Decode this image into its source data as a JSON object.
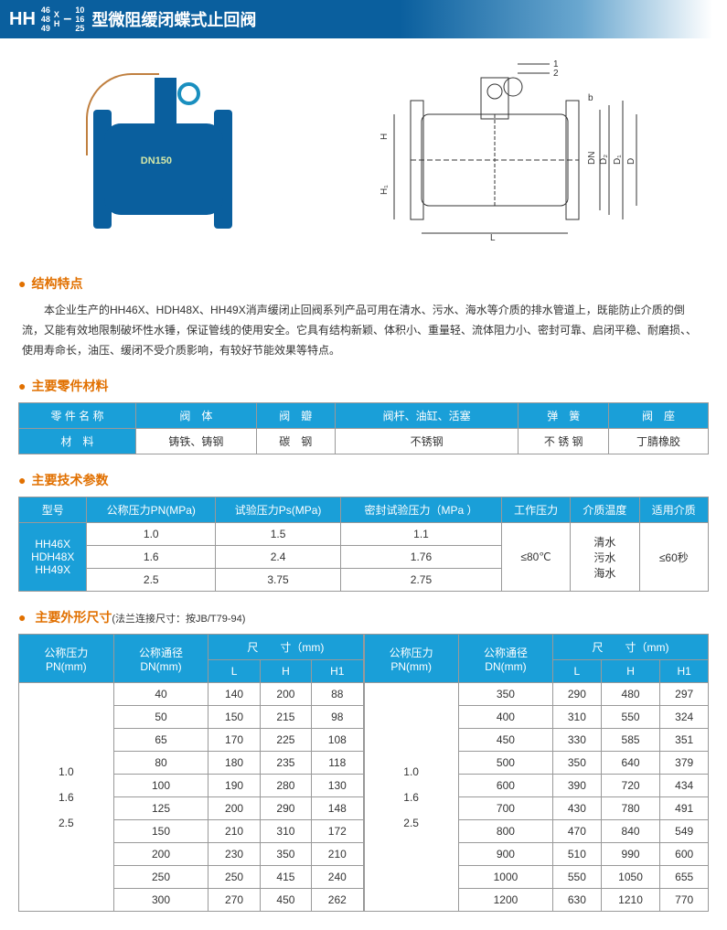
{
  "title": {
    "prefix": "HH",
    "stack1": [
      "46",
      "48",
      "49"
    ],
    "stack2": [
      "X",
      "",
      "H"
    ],
    "dash": "–",
    "stack3": [
      "10",
      "16",
      "25"
    ],
    "rest": "型微阻缓闭蝶式止回阀"
  },
  "photo": {
    "label": "DN150"
  },
  "sections": {
    "structure": {
      "title": "结构特点"
    },
    "materials": {
      "title": "主要零件材料"
    },
    "params": {
      "title": "主要技术参数"
    },
    "dims": {
      "title": "主要外形尺寸",
      "note": "(法兰连接尺寸：按JB/T79-94)"
    }
  },
  "desc": "　　本企业生产的HH46X、HDH48X、HH49X消声缓闭止回阀系列产品可用在清水、污水、海水等介质的排水管道上，既能防止介质的倒流，又能有效地限制破坏性水锤，保证管线的使用安全。它具有结构新颖、体积小、重量轻、流体阻力小、密封可靠、启闭平稳、耐磨损、、使用寿命长，油压、缓闭不受介质影响，有较好节能效果等特点。",
  "mat_table": {
    "headers": [
      "零 件 名 称",
      "阀　体",
      "阀　瓣",
      "阀杆、油缸、活塞",
      "弹　簧",
      "阀　座"
    ],
    "row_label": "材　料",
    "row": [
      "铸铁、铸钢",
      "碳　钢",
      "不锈钢",
      "不 锈 钢",
      "丁腈橡胶"
    ]
  },
  "param_table": {
    "headers": [
      "型号",
      "公称压力PN(MPa)",
      "试验压力Ps(MPa)",
      "密封试验压力（MPa ）",
      "工作压力",
      "介质温度",
      "适用介质"
    ],
    "model": "HH46X\nHDH48X\nHH49X",
    "rows": [
      [
        "1.0",
        "1.5",
        "1.1"
      ],
      [
        "1.6",
        "2.4",
        "1.76"
      ],
      [
        "2.5",
        "3.75",
        "2.75"
      ]
    ],
    "work_pressure": "≤80℃",
    "medium": "清水\n污水\n海水",
    "apply": "≤60秒"
  },
  "dim_table": {
    "headers_top": [
      "公称压力\nPN(mm)",
      "公称通径\nDN(mm)",
      "尺　　寸（mm)"
    ],
    "headers_sub": [
      "L",
      "H",
      "H1"
    ],
    "left": {
      "pn": "1.0\n\n1.6\n\n2.5",
      "rows": [
        [
          "40",
          "140",
          "200",
          "88"
        ],
        [
          "50",
          "150",
          "215",
          "98"
        ],
        [
          "65",
          "170",
          "225",
          "108"
        ],
        [
          "80",
          "180",
          "235",
          "118"
        ],
        [
          "100",
          "190",
          "280",
          "130"
        ],
        [
          "125",
          "200",
          "290",
          "148"
        ],
        [
          "150",
          "210",
          "310",
          "172"
        ],
        [
          "200",
          "230",
          "350",
          "210"
        ],
        [
          "250",
          "250",
          "415",
          "240"
        ],
        [
          "300",
          "270",
          "450",
          "262"
        ]
      ]
    },
    "right": {
      "pn": "1.0\n\n1.6\n\n2.5",
      "rows": [
        [
          "350",
          "290",
          "480",
          "297"
        ],
        [
          "400",
          "310",
          "550",
          "324"
        ],
        [
          "450",
          "330",
          "585",
          "351"
        ],
        [
          "500",
          "350",
          "640",
          "379"
        ],
        [
          "600",
          "390",
          "720",
          "434"
        ],
        [
          "700",
          "430",
          "780",
          "491"
        ],
        [
          "800",
          "470",
          "840",
          "549"
        ],
        [
          "900",
          "510",
          "990",
          "600"
        ],
        [
          "1000",
          "550",
          "1050",
          "655"
        ],
        [
          "1200",
          "630",
          "1210",
          "770"
        ]
      ]
    }
  },
  "colors": {
    "header": "#1a9fd8",
    "accent": "#e17000",
    "titlebar": "#0a5f9e"
  }
}
